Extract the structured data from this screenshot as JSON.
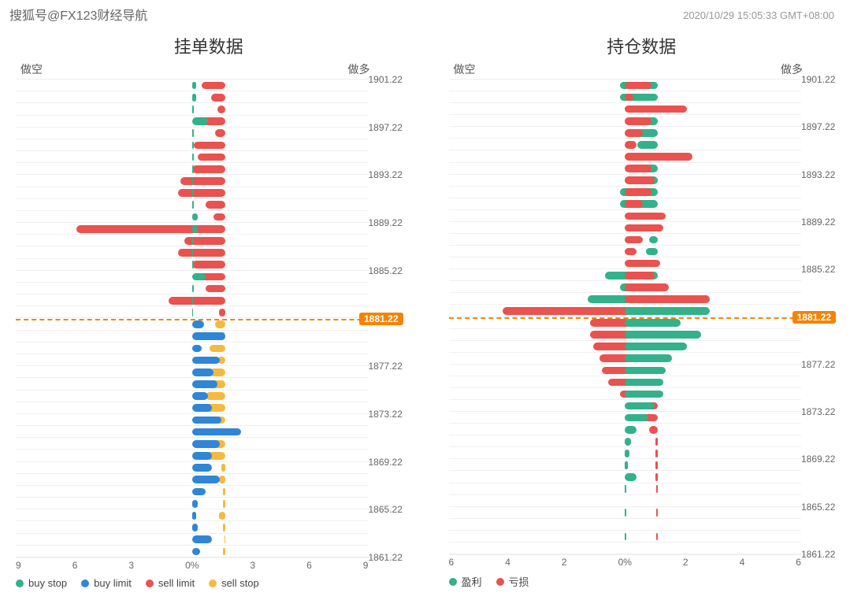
{
  "watermark": "搜狐号@FX123财经导航",
  "timestamp": "2020/10/29 15:05:33 GMT+08:00",
  "colors": {
    "green": "#33b18a",
    "blue": "#2f86d6",
    "red": "#e9524f",
    "yellow": "#f5b941",
    "orange": "#f58300",
    "grid": "#f0f0f0",
    "text": "#555"
  },
  "current_price": "1881.22",
  "current_price_row_index": 20,
  "left": {
    "title": "挂单数据",
    "top_left_label": "做空",
    "top_right_label": "做多",
    "x_max": 9,
    "x_ticks": [
      "9",
      "6",
      "3",
      "0%",
      "3",
      "6",
      "9"
    ],
    "legend": [
      {
        "label": "buy stop",
        "color": "green"
      },
      {
        "label": "buy limit",
        "color": "blue"
      },
      {
        "label": "sell limit",
        "color": "red"
      },
      {
        "label": "sell stop",
        "color": "yellow"
      }
    ],
    "rows": [
      {
        "left_val": 1.2,
        "left_color": "red",
        "right_val": 0.2,
        "right_color": "green"
      },
      {
        "left_val": 0.7,
        "left_color": "red",
        "right_val": 0.2,
        "right_color": "green"
      },
      {
        "left_val": 0.4,
        "left_color": "red",
        "right_val": 0.1,
        "right_color": "green"
      },
      {
        "left_val": 1.3,
        "left_color": "red",
        "right_val": 0.8,
        "right_color": "green"
      },
      {
        "left_val": 0.5,
        "left_color": "red",
        "right_val": 0.1,
        "right_color": "green"
      },
      {
        "left_val": 1.6,
        "left_color": "red",
        "right_val": 0.1,
        "right_color": "green"
      },
      {
        "left_val": 1.4,
        "left_color": "red",
        "right_val": 0.1,
        "right_color": "green"
      },
      {
        "left_val": 1.7,
        "left_color": "red",
        "right_val": 0.1,
        "right_color": "green"
      },
      {
        "left_val": 2.3,
        "left_color": "red",
        "right_val": 0.05,
        "right_color": "green"
      },
      {
        "left_val": 2.4,
        "left_color": "red",
        "right_val": 0.1,
        "right_color": "green"
      },
      {
        "left_val": 1.0,
        "left_color": "red",
        "right_val": 0.1,
        "right_color": "green"
      },
      {
        "left_val": 0.6,
        "left_color": "red",
        "right_val": 0.3,
        "right_color": "green"
      },
      {
        "left_val": 7.6,
        "left_color": "red",
        "right_val": 0.3,
        "right_color": "green"
      },
      {
        "left_val": 2.1,
        "left_color": "red",
        "right_val": 0.1,
        "right_color": "green"
      },
      {
        "left_val": 2.4,
        "left_color": "red",
        "right_val": 0.05,
        "right_color": "green"
      },
      {
        "left_val": 1.7,
        "left_color": "red",
        "right_val": 0.1,
        "right_color": "green"
      },
      {
        "left_val": 1.4,
        "left_color": "red",
        "right_val": 0.7,
        "right_color": "green"
      },
      {
        "left_val": 1.0,
        "left_color": "red",
        "right_val": 0.1,
        "right_color": "green"
      },
      {
        "left_val": 2.9,
        "left_color": "red",
        "right_val": 0.05,
        "right_color": "green"
      },
      {
        "left_val": 0.3,
        "left_color": "red",
        "right_val": 0.05,
        "right_color": "green"
      },
      {
        "left_val": 0.5,
        "left_color": "yellow",
        "right_val": 0.6,
        "right_color": "blue"
      },
      {
        "left_val": 0.3,
        "left_color": "yellow",
        "right_val": 1.7,
        "right_color": "blue"
      },
      {
        "left_val": 0.8,
        "left_color": "yellow",
        "right_val": 0.5,
        "right_color": "blue"
      },
      {
        "left_val": 0.4,
        "left_color": "yellow",
        "right_val": 1.4,
        "right_color": "blue"
      },
      {
        "left_val": 0.8,
        "left_color": "yellow",
        "right_val": 1.1,
        "right_color": "blue"
      },
      {
        "left_val": 1.1,
        "left_color": "yellow",
        "right_val": 1.3,
        "right_color": "blue"
      },
      {
        "left_val": 1.0,
        "left_color": "yellow",
        "right_val": 0.8,
        "right_color": "blue"
      },
      {
        "left_val": 1.4,
        "left_color": "yellow",
        "right_val": 1.0,
        "right_color": "blue"
      },
      {
        "left_val": 0.5,
        "left_color": "yellow",
        "right_val": 1.5,
        "right_color": "blue"
      },
      {
        "left_val": 0.7,
        "left_color": "yellow",
        "right_val": 2.5,
        "right_color": "blue"
      },
      {
        "left_val": 0.7,
        "left_color": "yellow",
        "right_val": 1.4,
        "right_color": "blue"
      },
      {
        "left_val": 1.0,
        "left_color": "yellow",
        "right_val": 1.0,
        "right_color": "blue"
      },
      {
        "left_val": 0.2,
        "left_color": "yellow",
        "right_val": 1.0,
        "right_color": "blue"
      },
      {
        "left_val": 0.3,
        "left_color": "yellow",
        "right_val": 1.4,
        "right_color": "blue"
      },
      {
        "left_val": 0.1,
        "left_color": "yellow",
        "right_val": 0.7,
        "right_color": "blue"
      },
      {
        "left_val": 0.1,
        "left_color": "yellow",
        "right_val": 0.3,
        "right_color": "blue"
      },
      {
        "left_val": 0.3,
        "left_color": "yellow",
        "right_val": 0.2,
        "right_color": "blue"
      },
      {
        "left_val": 0.1,
        "left_color": "yellow",
        "right_val": 0.3,
        "right_color": "blue"
      },
      {
        "left_val": 0.05,
        "left_color": "yellow",
        "right_val": 1.0,
        "right_color": "blue"
      },
      {
        "left_val": 0.1,
        "left_color": "yellow",
        "right_val": 0.4,
        "right_color": "blue"
      }
    ]
  },
  "right": {
    "title": "持仓数据",
    "top_left_label": "做空",
    "top_right_label": "做多",
    "x_max": 6,
    "x_ticks": [
      "6",
      "4",
      "2",
      "0%",
      "2",
      "4",
      "6"
    ],
    "legend": [
      {
        "label": "盈利",
        "color": "green"
      },
      {
        "label": "亏损",
        "color": "red"
      }
    ],
    "rows": [
      {
        "left_val": 1.3,
        "left_color": "green",
        "right_val": 0.9,
        "right_color": "red"
      },
      {
        "left_val": 1.3,
        "left_color": "green",
        "right_val": 0.3,
        "right_color": "red"
      },
      {
        "left_val": 0.6,
        "left_color": "green",
        "right_val": 2.1,
        "right_color": "red"
      },
      {
        "left_val": 0.4,
        "left_color": "green",
        "right_val": 0.9,
        "right_color": "red"
      },
      {
        "left_val": 1.1,
        "left_color": "green",
        "right_val": 0.6,
        "right_color": "red"
      },
      {
        "left_val": 0.7,
        "left_color": "green",
        "right_val": 0.4,
        "right_color": "red"
      },
      {
        "left_val": 1.0,
        "left_color": "green",
        "right_val": 2.3,
        "right_color": "red"
      },
      {
        "left_val": 0.5,
        "left_color": "green",
        "right_val": 0.9,
        "right_color": "red"
      },
      {
        "left_val": 0.5,
        "left_color": "green",
        "right_val": 1.0,
        "right_color": "red"
      },
      {
        "left_val": 1.3,
        "left_color": "green",
        "right_val": 0.9,
        "right_color": "red"
      },
      {
        "left_val": 1.3,
        "left_color": "green",
        "right_val": 0.6,
        "right_color": "red"
      },
      {
        "left_val": 0.9,
        "left_color": "green",
        "right_val": 1.4,
        "right_color": "red"
      },
      {
        "left_val": 0.8,
        "left_color": "green",
        "right_val": 1.3,
        "right_color": "red"
      },
      {
        "left_val": 0.3,
        "left_color": "green",
        "right_val": 0.6,
        "right_color": "red"
      },
      {
        "left_val": 0.4,
        "left_color": "green",
        "right_val": 0.4,
        "right_color": "red"
      },
      {
        "left_val": 0.8,
        "left_color": "green",
        "right_val": 1.2,
        "right_color": "red"
      },
      {
        "left_val": 1.8,
        "left_color": "green",
        "right_val": 1.0,
        "right_color": "red"
      },
      {
        "left_val": 1.3,
        "left_color": "green",
        "right_val": 1.5,
        "right_color": "red"
      },
      {
        "left_val": 2.4,
        "left_color": "green",
        "right_val": 2.9,
        "right_color": "red"
      },
      {
        "left_val": 5.3,
        "left_color": "red",
        "right_val": 2.9,
        "right_color": "green"
      },
      {
        "left_val": 2.3,
        "left_color": "red",
        "right_val": 1.9,
        "right_color": "green"
      },
      {
        "left_val": 2.3,
        "left_color": "red",
        "right_val": 2.6,
        "right_color": "green"
      },
      {
        "left_val": 2.2,
        "left_color": "red",
        "right_val": 2.1,
        "right_color": "green"
      },
      {
        "left_val": 2.0,
        "left_color": "red",
        "right_val": 1.6,
        "right_color": "green"
      },
      {
        "left_val": 1.9,
        "left_color": "red",
        "right_val": 1.4,
        "right_color": "green"
      },
      {
        "left_val": 1.7,
        "left_color": "red",
        "right_val": 1.3,
        "right_color": "green"
      },
      {
        "left_val": 1.3,
        "left_color": "red",
        "right_val": 1.3,
        "right_color": "green"
      },
      {
        "left_val": 1.0,
        "left_color": "red",
        "right_val": 1.0,
        "right_color": "green"
      },
      {
        "left_val": 0.6,
        "left_color": "red",
        "right_val": 0.8,
        "right_color": "green"
      },
      {
        "left_val": 0.3,
        "left_color": "red",
        "right_val": 0.4,
        "right_color": "green"
      },
      {
        "left_val": 0.1,
        "left_color": "red",
        "right_val": 0.2,
        "right_color": "green"
      },
      {
        "left_val": 0.1,
        "left_color": "red",
        "right_val": 0.15,
        "right_color": "green"
      },
      {
        "left_val": 0.1,
        "left_color": "red",
        "right_val": 0.1,
        "right_color": "green"
      },
      {
        "left_val": 0.1,
        "left_color": "red",
        "right_val": 0.4,
        "right_color": "green"
      },
      {
        "left_val": 0.05,
        "left_color": "red",
        "right_val": 0.05,
        "right_color": "green"
      },
      {
        "left_val": 0.0,
        "left_color": "red",
        "right_val": 0.0,
        "right_color": "green"
      },
      {
        "left_val": 0.05,
        "left_color": "red",
        "right_val": 0.05,
        "right_color": "green"
      },
      {
        "left_val": 0.0,
        "left_color": "red",
        "right_val": 0.0,
        "right_color": "green"
      },
      {
        "left_val": 0.05,
        "left_color": "red",
        "right_val": 0.05,
        "right_color": "green"
      },
      {
        "left_val": 0.0,
        "left_color": "red",
        "right_val": 0.0,
        "right_color": "green"
      }
    ]
  },
  "y_ticks": [
    {
      "row": 0,
      "label": "1901.22"
    },
    {
      "row": 4,
      "label": "1897.22"
    },
    {
      "row": 8,
      "label": "1893.22"
    },
    {
      "row": 12,
      "label": "1889.22"
    },
    {
      "row": 16,
      "label": "1885.22"
    },
    {
      "row": 24,
      "label": "1877.22"
    },
    {
      "row": 28,
      "label": "1873.22"
    },
    {
      "row": 32,
      "label": "1869.22"
    },
    {
      "row": 36,
      "label": "1865.22"
    },
    {
      "row": 40,
      "label": "1861.22"
    }
  ]
}
